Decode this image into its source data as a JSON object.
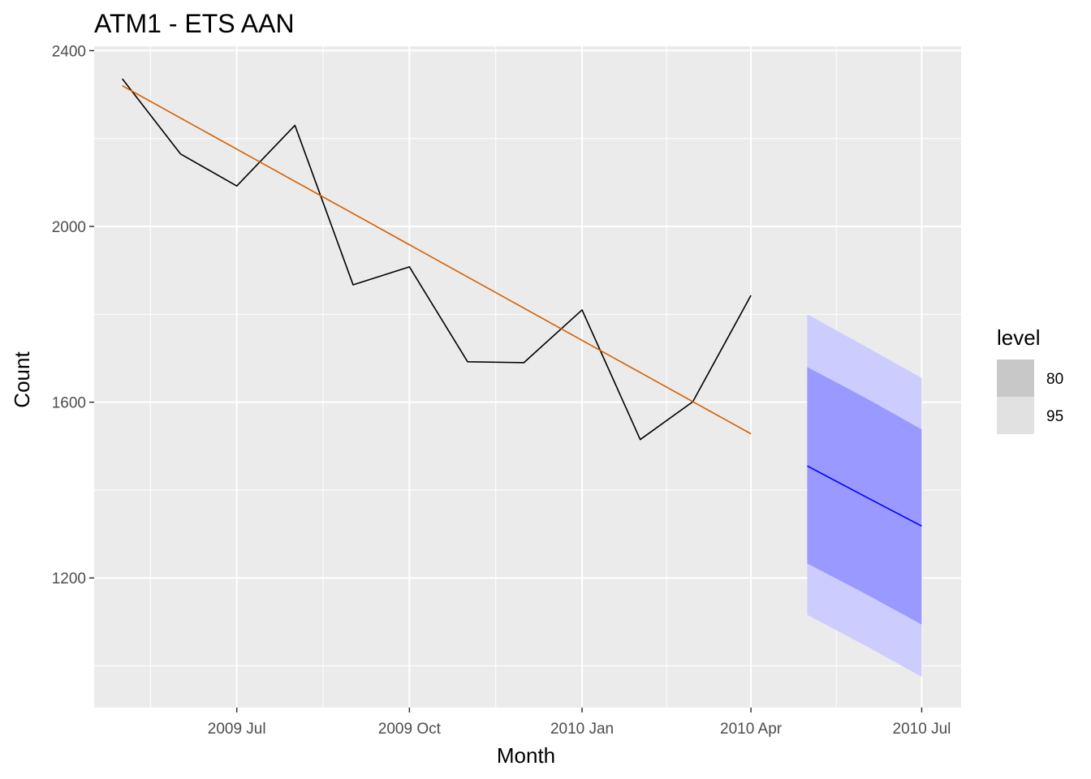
{
  "chart_data": {
    "type": "line",
    "title": "ATM1 - ETS AAN",
    "xlabel": "Month",
    "ylabel": "Count",
    "x_ticks": [
      "2009 Jul",
      "2009 Oct",
      "2010 Jan",
      "2010 Apr",
      "2010 Jul"
    ],
    "x_tick_dates": [
      "2009-07",
      "2009-10",
      "2010-01",
      "2010-04",
      "2010-07"
    ],
    "y_ticks": [
      1200,
      1600,
      2000,
      2400
    ],
    "ylim": [
      905,
      2410
    ],
    "xlim": [
      "2009-04-16",
      "2010-07-22"
    ],
    "grid": true,
    "legend": {
      "title": "level",
      "position": "right",
      "entries": [
        {
          "label": "80",
          "color": "#c8c8c8"
        },
        {
          "label": "95",
          "color": "#e1e1e1"
        }
      ]
    },
    "series": [
      {
        "color": "#000000",
        "x": [
          "2009-05",
          "2009-06",
          "2009-07",
          "2009-08",
          "2009-09",
          "2009-10",
          "2009-11",
          "2009-12",
          "2010-01",
          "2010-02",
          "2010-03",
          "2010-04"
        ],
        "values": [
          2336,
          2165,
          2092,
          2230,
          1867,
          1908,
          1692,
          1690,
          1810,
          1515,
          1601,
          1843
        ]
      },
      {
        "color": "#d55e00",
        "x": [
          "2009-05",
          "2010-04"
        ],
        "values": [
          2320,
          1528
        ]
      },
      {
        "color": "#0000ff",
        "x": [
          "2010-05",
          "2010-06",
          "2010-07"
        ],
        "values": [
          1455,
          1385,
          1318
        ]
      }
    ],
    "intervals": [
      {
        "level": "95",
        "color": "#ccccff",
        "x": [
          "2010-05",
          "2010-06",
          "2010-07"
        ],
        "lower": [
          1116,
          1046,
          975
        ],
        "upper": [
          1800,
          1727,
          1655
        ]
      },
      {
        "level": "80",
        "color": "#9999ff",
        "x": [
          "2010-05",
          "2010-06",
          "2010-07"
        ],
        "lower": [
          1233,
          1164,
          1094
        ],
        "upper": [
          1680,
          1610,
          1538
        ]
      }
    ]
  }
}
